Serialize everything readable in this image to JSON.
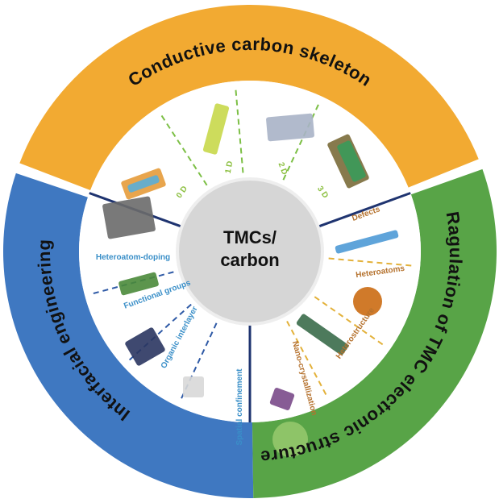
{
  "outer_labels": {
    "top": "Conductive carbon skeleton",
    "left": "Interfacial engineering",
    "right": "Ragulation of TMC electronic structure"
  },
  "center": {
    "line1": "TMCs/",
    "line2": "carbon"
  },
  "skeleton": [
    "0 D",
    "1 D",
    "2 D",
    "3 D"
  ],
  "electronic_structure": [
    "Defects",
    "Heteroatoms",
    "Heterostructure",
    "Nano-crystallization"
  ],
  "interfacial": [
    "Spatial confinement",
    "Organic interlayer",
    "Functional groups",
    "Heteroatom-doping"
  ]
}
